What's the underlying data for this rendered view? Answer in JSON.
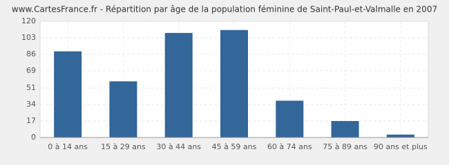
{
  "chart_data": {
    "type": "bar",
    "title": "www.CartesFrance.fr - Répartition par âge de la population féminine de Saint-Paul-et-Valmalle en 2007",
    "categories": [
      "0 à 14 ans",
      "15 à 29 ans",
      "30 à 44 ans",
      "45 à 59 ans",
      "60 à 74 ans",
      "75 à 89 ans",
      "90 ans et plus"
    ],
    "values": [
      89,
      58,
      108,
      111,
      38,
      17,
      3
    ],
    "color": "#336699",
    "ylim": [
      0,
      120
    ],
    "yticks": [
      0,
      17,
      34,
      51,
      69,
      86,
      103,
      120
    ],
    "grid": true
  }
}
